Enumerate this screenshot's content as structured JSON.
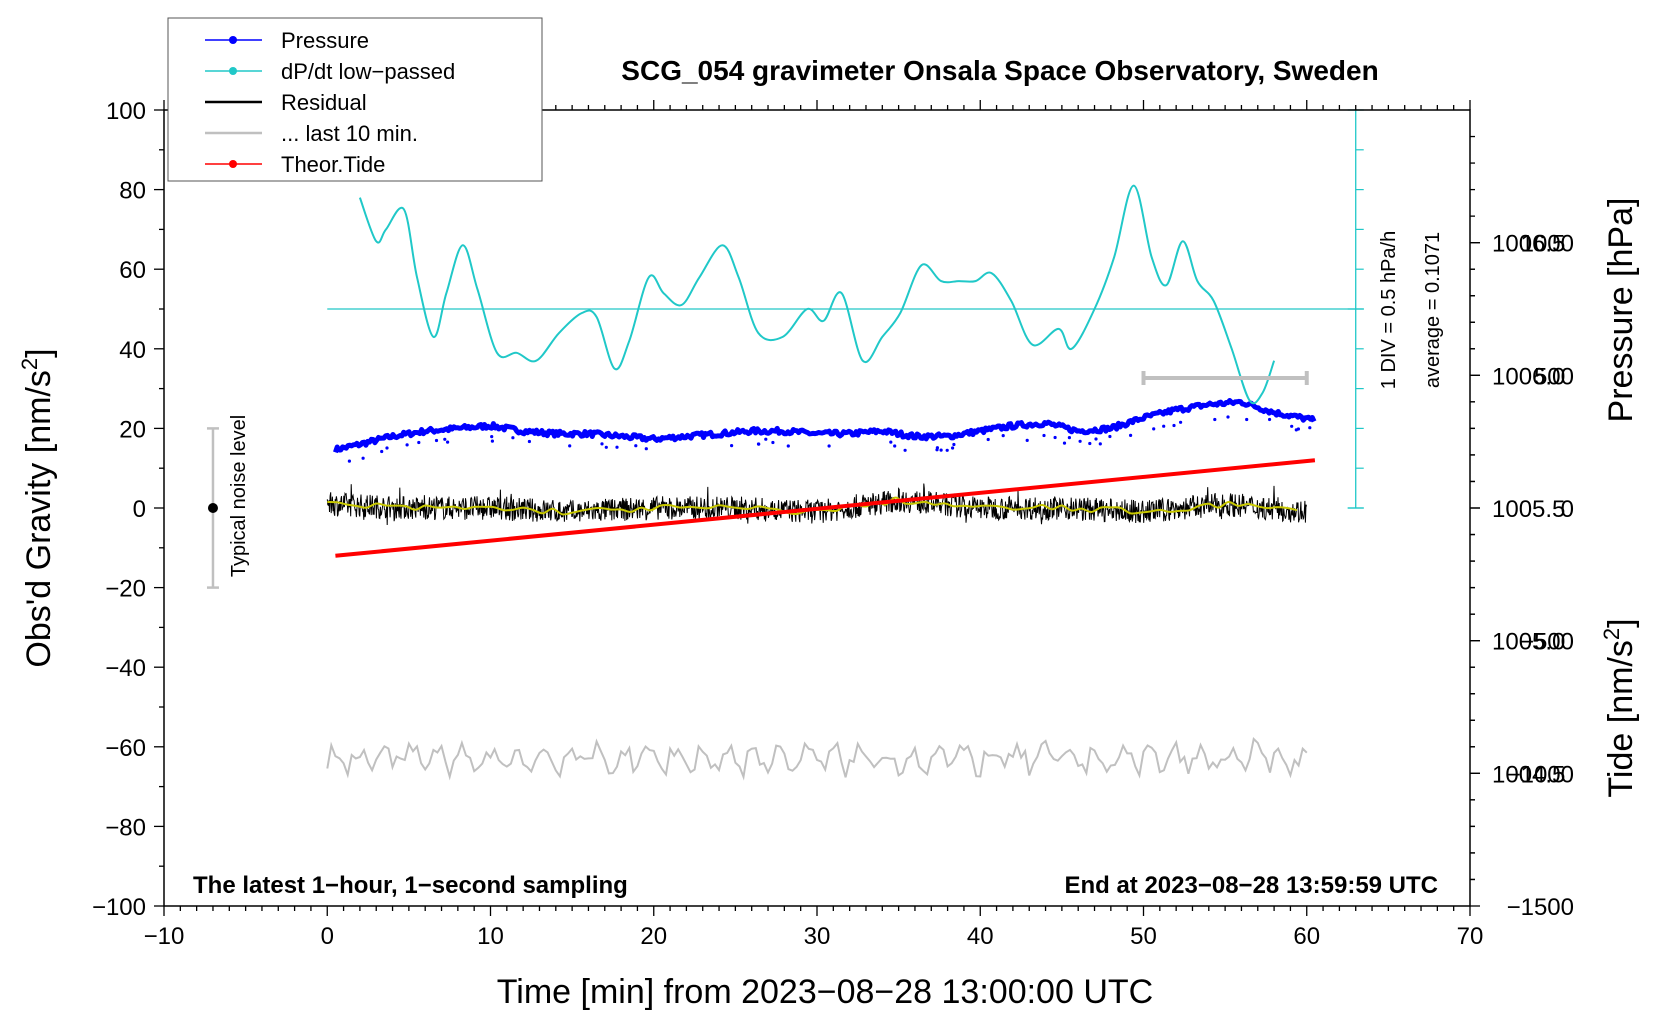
{
  "chart_data": {
    "type": "line",
    "title": "SCG_054 gravimeter Onsala Space Observatory, Sweden",
    "xlabel": "Time [min] from 2023−08−28 13:00:00 UTC",
    "ylabel": "Obs'd Gravity [nm/s",
    "ylabel_sup": "2",
    "ylabel_end": "]",
    "y2label": "Pressure [hPa]",
    "y3label": "Tide [nm/s",
    "y3label_sup": "2",
    "y3label_end": "]",
    "xlim": [
      -10,
      70
    ],
    "ylim": [
      -100,
      100
    ],
    "pressure_lim": [
      1004.0,
      1007.0
    ],
    "tide_lim": [
      -1500,
      1500
    ],
    "x_ticks": [
      -10,
      0,
      10,
      20,
      30,
      40,
      50,
      60,
      70
    ],
    "x_tick_labels": [
      "−10",
      "0",
      "10",
      "20",
      "30",
      "40",
      "50",
      "60",
      "70"
    ],
    "y_ticks": [
      -100,
      -80,
      -60,
      -40,
      -20,
      0,
      20,
      40,
      60,
      80,
      100
    ],
    "y_tick_labels": [
      "−100",
      "−80",
      "−60",
      "−40",
      "−20",
      "0",
      "20",
      "40",
      "60",
      "80",
      "100"
    ],
    "pressure_ticks": [
      1004.5,
      1005.0,
      1005.5,
      1006.0,
      1006.5
    ],
    "pressure_tick_labels": [
      "1004.5",
      "1005.0",
      "1005.5",
      "1006.0",
      "1006.5"
    ],
    "tide_ticks": [
      -1500,
      -1000,
      -500,
      0,
      500,
      1000
    ],
    "tide_tick_labels": [
      "−1500",
      "−1000",
      "−500",
      "0",
      "500",
      "1000"
    ],
    "legend": {
      "position": "top-left",
      "entries": [
        {
          "label": "Pressure",
          "color": "#0000ff",
          "marker": true
        },
        {
          "label": "dP/dt low−passed",
          "color": "#20c8c8",
          "marker": true
        },
        {
          "label": "Residual",
          "color": "#000000",
          "marker": false
        },
        {
          "label": "... last 10 min.",
          "color": "#c0c0c0",
          "marker": false
        },
        {
          "label": "Theor.Tide",
          "color": "#ff0000",
          "marker": true
        }
      ]
    },
    "annotations": {
      "bottom_left": "The latest 1−hour, 1−second sampling",
      "bottom_right": "End at 2023−08−28 13:59:59 UTC",
      "noise_label": "Typical noise level",
      "noise_bar": {
        "x": -7,
        "center": 0,
        "half_range": 20
      },
      "dpdt_scale": "1 DIV = 0.5 hPa/h",
      "dpdt_average": "average = 0.1071",
      "dpdt_scale_axis_x": 63,
      "last10_bar": {
        "x_start": 50,
        "x_end": 60,
        "tide": 490
      }
    },
    "series": [
      {
        "name": "Pressure",
        "axis": "pressure",
        "color": "#0000ff",
        "x": [
          0.5,
          2,
          4,
          6,
          8,
          10,
          12,
          14,
          16,
          18,
          20,
          22,
          24,
          26,
          28,
          30,
          32,
          34,
          36,
          38,
          40,
          42,
          44,
          46,
          48,
          50,
          52,
          54,
          56,
          58,
          60.5
        ],
        "values": [
          1005.72,
          1005.74,
          1005.77,
          1005.79,
          1005.8,
          1005.81,
          1005.79,
          1005.78,
          1005.78,
          1005.77,
          1005.76,
          1005.77,
          1005.78,
          1005.79,
          1005.79,
          1005.78,
          1005.78,
          1005.79,
          1005.77,
          1005.77,
          1005.79,
          1005.81,
          1005.82,
          1005.79,
          1005.8,
          1005.84,
          1005.87,
          1005.89,
          1005.9,
          1005.86,
          1005.83
        ]
      },
      {
        "name": "dP/dt low−passed",
        "axis": "gravity",
        "color": "#20c8c8",
        "x": [
          2,
          3,
          3.6,
          4.7,
          5.5,
          6.5,
          7.3,
          8.3,
          9.2,
          10.4,
          11.6,
          12.8,
          14.2,
          15.6,
          16.5,
          17.6,
          18.5,
          19.7,
          20.6,
          21.7,
          22.8,
          24.2,
          25.2,
          26.4,
          27.9,
          29.4,
          30.4,
          31.5,
          32.8,
          34,
          35.1,
          36.4,
          37.6,
          38.7,
          39.7,
          40.7,
          41.9,
          43.2,
          44.8,
          45.6,
          47,
          48.2,
          49.4,
          50.5,
          51.4,
          52.4,
          53.3,
          54.3,
          55.4,
          56.5,
          57.3,
          58
        ],
        "values": [
          78,
          67,
          70,
          75,
          58,
          43,
          54,
          66,
          55,
          39,
          39,
          37,
          44,
          49,
          48,
          35,
          42,
          58,
          54,
          51,
          58,
          66,
          58,
          44,
          43,
          50,
          47,
          54,
          37,
          43,
          49,
          61,
          57,
          57,
          57,
          59,
          52,
          41,
          45,
          40,
          50,
          63,
          81,
          63,
          56,
          67,
          57,
          52,
          40,
          27,
          29,
          37
        ]
      },
      {
        "name": "Residual smoothed",
        "axis": "gravity",
        "color": "#c8c800",
        "x": [
          0,
          5,
          10,
          15,
          20,
          25,
          30,
          35,
          40,
          45,
          50,
          55,
          60
        ],
        "values": [
          1,
          0,
          0,
          -1,
          0,
          0,
          -1,
          2,
          0,
          0,
          -1,
          1,
          -1
        ]
      },
      {
        "name": "Theor.Tide",
        "axis": "tide",
        "color": "#ff0000",
        "x": [
          0.5,
          60.5
        ],
        "values": [
          -180,
          180
        ]
      },
      {
        "name": "... last 10 min.",
        "axis": "gravity",
        "color": "#c0c0c0",
        "x": [
          0,
          60
        ],
        "baseline": -63
      }
    ]
  }
}
